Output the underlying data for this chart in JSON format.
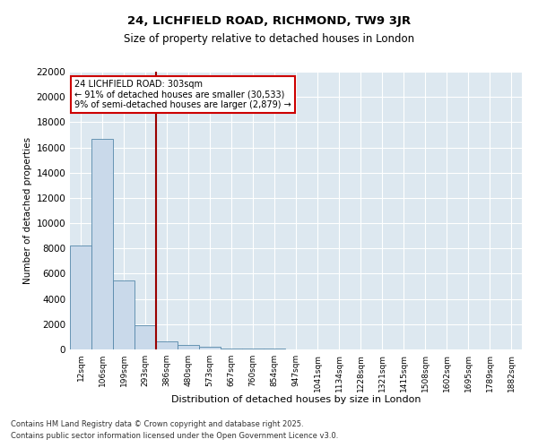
{
  "title": "24, LICHFIELD ROAD, RICHMOND, TW9 3JR",
  "subtitle": "Size of property relative to detached houses in London",
  "xlabel": "Distribution of detached houses by size in London",
  "ylabel": "Number of detached properties",
  "bar_color": "#c9d9ea",
  "bar_edge_color": "#5588aa",
  "background_color": "#dde8f0",
  "grid_color": "white",
  "annotation_text": "24 LICHFIELD ROAD: 303sqm\n← 91% of detached houses are smaller (30,533)\n9% of semi-detached houses are larger (2,879) →",
  "vline_color": "#990000",
  "annotation_box_edgecolor": "#cc0000",
  "categories": [
    "12sqm",
    "106sqm",
    "199sqm",
    "293sqm",
    "386sqm",
    "480sqm",
    "573sqm",
    "667sqm",
    "760sqm",
    "854sqm",
    "947sqm",
    "1041sqm",
    "1134sqm",
    "1228sqm",
    "1321sqm",
    "1415sqm",
    "1508sqm",
    "1602sqm",
    "1695sqm",
    "1789sqm",
    "1882sqm"
  ],
  "values": [
    8200,
    16700,
    5500,
    1900,
    650,
    350,
    200,
    100,
    60,
    40,
    20,
    15,
    10,
    8,
    6,
    5,
    4,
    3,
    2,
    2,
    1
  ],
  "ylim": [
    0,
    22000
  ],
  "yticks": [
    0,
    2000,
    4000,
    6000,
    8000,
    10000,
    12000,
    14000,
    16000,
    18000,
    20000,
    22000
  ],
  "footer_line1": "Contains HM Land Registry data © Crown copyright and database right 2025.",
  "footer_line2": "Contains public sector information licensed under the Open Government Licence v3.0.",
  "vline_bin_index": 3.5,
  "figsize": [
    6.0,
    5.0
  ],
  "dpi": 100
}
